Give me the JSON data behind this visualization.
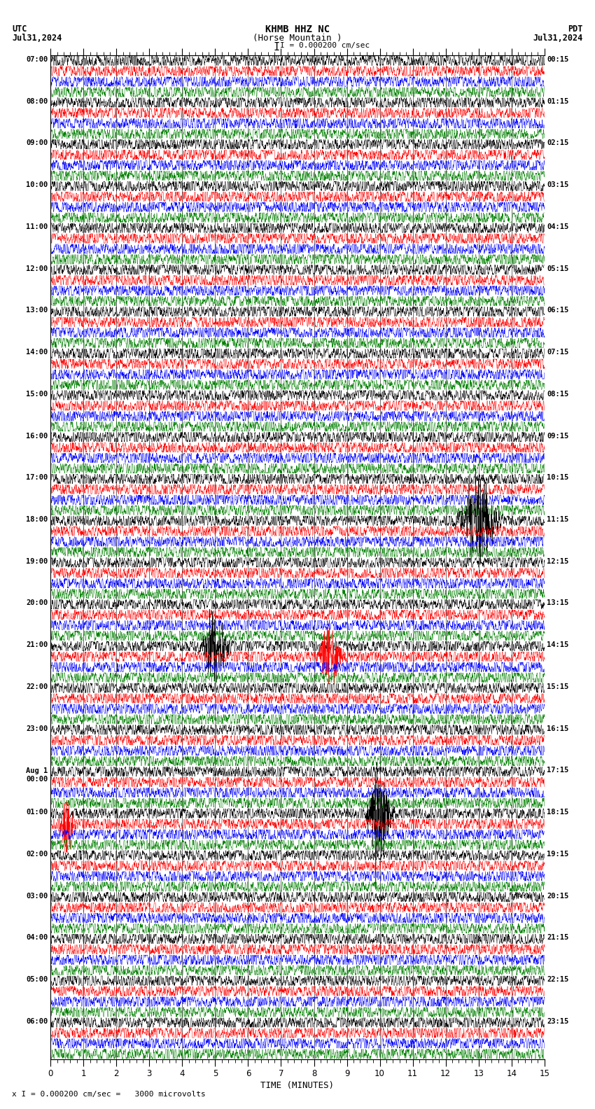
{
  "title_center": "KHMB HHZ NC\n(Horse Mountain )",
  "title_left": "UTC\nJul31,2024",
  "title_right": "PDT\nJul31,2024",
  "scale_label": "I = 0.000200 cm/sec",
  "footer_label": "x I = 0.000200 cm/sec =   3000 microvolts",
  "xlabel": "TIME (MINUTES)",
  "xmin": 0,
  "xmax": 15,
  "trace_colors": [
    "black",
    "red",
    "blue",
    "green"
  ],
  "background_color": "white",
  "fig_width": 8.5,
  "fig_height": 15.84,
  "dpi": 100,
  "utc_times": [
    "07:00",
    "08:00",
    "09:00",
    "10:00",
    "11:00",
    "12:00",
    "13:00",
    "14:00",
    "15:00",
    "16:00",
    "17:00",
    "18:00",
    "19:00",
    "20:00",
    "21:00",
    "22:00",
    "23:00",
    "Aug 1\n00:00",
    "01:00",
    "02:00",
    "03:00",
    "04:00",
    "05:00",
    "06:00"
  ],
  "pdt_times": [
    "00:15",
    "01:15",
    "02:15",
    "03:15",
    "04:15",
    "05:15",
    "06:15",
    "07:15",
    "08:15",
    "09:15",
    "10:15",
    "11:15",
    "12:15",
    "13:15",
    "14:15",
    "15:15",
    "16:15",
    "17:15",
    "18:15",
    "19:15",
    "20:15",
    "21:15",
    "22:15",
    "23:15"
  ],
  "num_hours": 24,
  "traces_per_hour": 4,
  "noise_seed": 12345
}
